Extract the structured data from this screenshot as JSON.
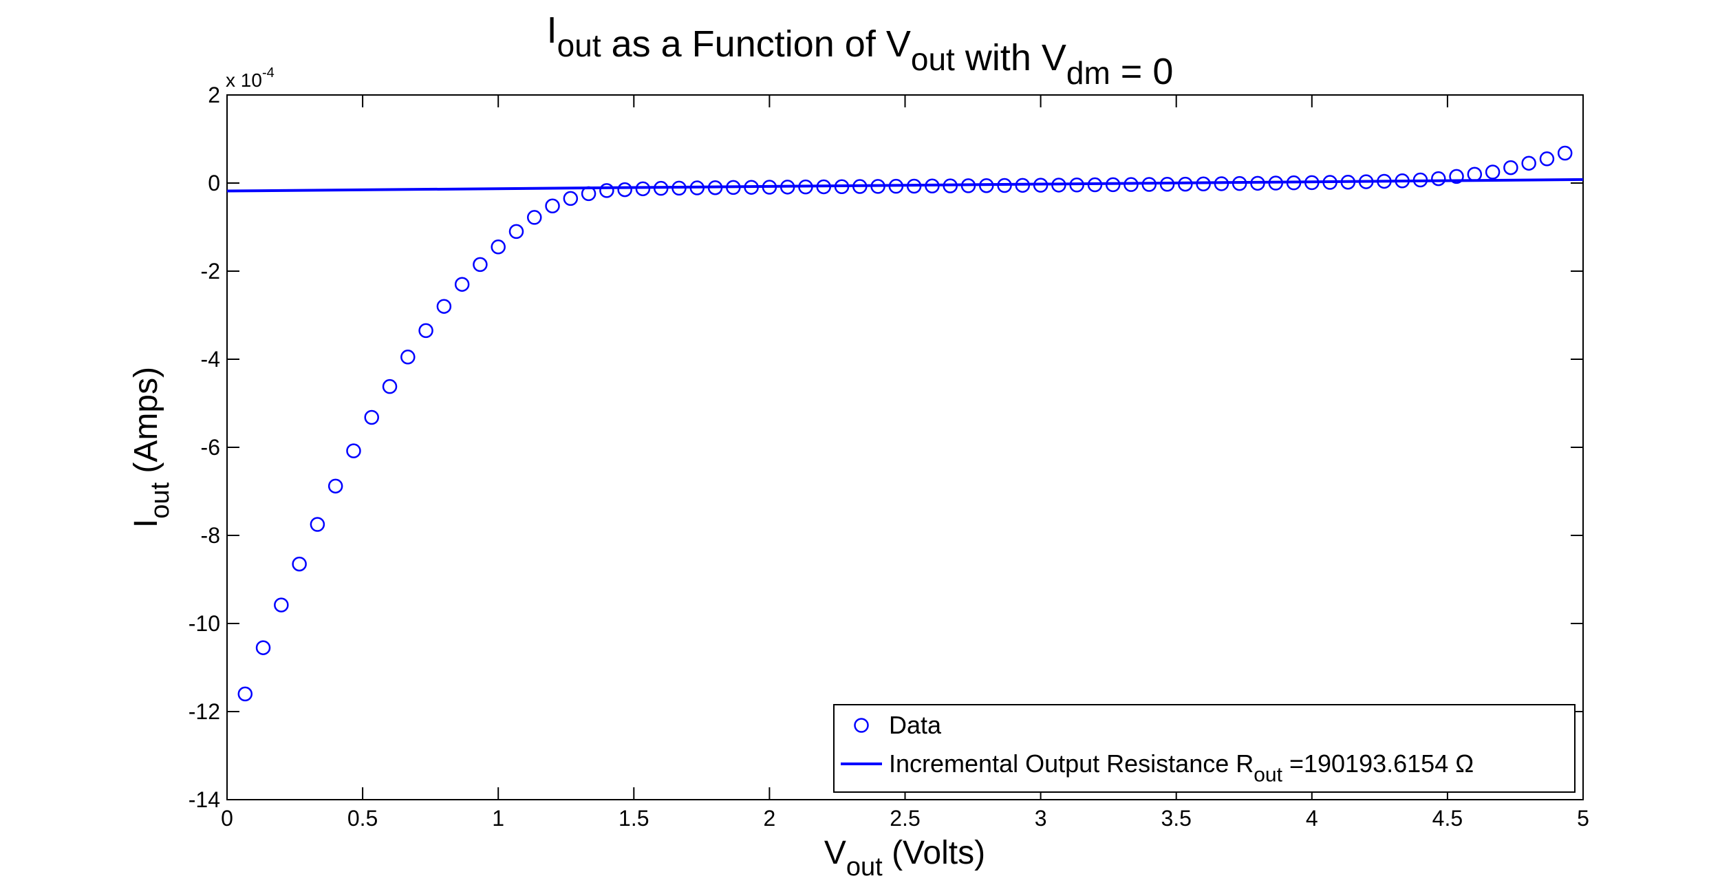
{
  "chart_data": {
    "type": "scatter",
    "title": {
      "parts": [
        {
          "text": "I",
          "sub": "out"
        },
        {
          "text": " as a Function of V",
          "sub": "out"
        },
        {
          "text": " with V",
          "sub": "dm"
        },
        {
          "text": " = 0",
          "sub": ""
        }
      ]
    },
    "xlabel": {
      "main": "V",
      "sub": "out",
      "rest": " (Volts)"
    },
    "ylabel": {
      "main": "I",
      "sub": "out",
      "rest": " (Amps)"
    },
    "y_multiplier": {
      "base": "x 10",
      "exponent": "-4"
    },
    "xlim": [
      0,
      5
    ],
    "ylim": [
      -14,
      2
    ],
    "x_ticks": [
      0,
      0.5,
      1,
      1.5,
      2,
      2.5,
      3,
      3.5,
      4,
      4.5,
      5
    ],
    "x_tick_labels": [
      "0",
      "0.5",
      "1",
      "1.5",
      "2",
      "2.5",
      "3",
      "3.5",
      "4",
      "4.5",
      "5"
    ],
    "y_ticks": [
      2,
      0,
      -2,
      -4,
      -6,
      -8,
      -10,
      -12,
      -14
    ],
    "y_tick_labels": [
      "2",
      "0",
      "-2",
      "-4",
      "-6",
      "-8",
      "-10",
      "-12",
      "-14"
    ],
    "y_units_note": "values in units of 1e-4 Amps",
    "grid": false,
    "legend_placement": "bottom-right",
    "color": "#0000ff",
    "series": [
      {
        "name": "Data",
        "type": "scatter",
        "marker": "circle",
        "x": [
          0.0667,
          0.1333,
          0.2,
          0.2667,
          0.3333,
          0.4,
          0.4667,
          0.5333,
          0.6,
          0.6667,
          0.7333,
          0.8,
          0.8667,
          0.9333,
          1.0,
          1.0667,
          1.1333,
          1.2,
          1.2667,
          1.3333,
          1.4,
          1.4667,
          1.5333,
          1.6,
          1.6667,
          1.7333,
          1.8,
          1.8667,
          1.9333,
          2.0,
          2.0667,
          2.1333,
          2.2,
          2.2667,
          2.3333,
          2.4,
          2.4667,
          2.5333,
          2.6,
          2.6667,
          2.7333,
          2.8,
          2.8667,
          2.9333,
          3.0,
          3.0667,
          3.1333,
          3.2,
          3.2667,
          3.3333,
          3.4,
          3.4667,
          3.5333,
          3.6,
          3.6667,
          3.7333,
          3.8,
          3.8667,
          3.9333,
          4.0,
          4.0667,
          4.1333,
          4.2,
          4.2667,
          4.3333,
          4.4,
          4.4667,
          4.5333,
          4.6,
          4.6667,
          4.7333,
          4.8,
          4.8667,
          4.9333
        ],
        "y": [
          -11.6,
          -10.55,
          -9.58,
          -8.65,
          -7.75,
          -6.88,
          -6.08,
          -5.32,
          -4.62,
          -3.95,
          -3.35,
          -2.8,
          -2.3,
          -1.85,
          -1.45,
          -1.1,
          -0.78,
          -0.52,
          -0.35,
          -0.24,
          -0.17,
          -0.15,
          -0.13,
          -0.12,
          -0.115,
          -0.11,
          -0.105,
          -0.1,
          -0.097,
          -0.094,
          -0.091,
          -0.088,
          -0.085,
          -0.082,
          -0.079,
          -0.076,
          -0.073,
          -0.07,
          -0.067,
          -0.064,
          -0.061,
          -0.058,
          -0.055,
          -0.052,
          -0.049,
          -0.046,
          -0.043,
          -0.04,
          -0.037,
          -0.034,
          -0.031,
          -0.028,
          -0.025,
          -0.02,
          -0.015,
          -0.01,
          -0.005,
          0.0,
          0.005,
          0.01,
          0.015,
          0.02,
          0.03,
          0.04,
          0.05,
          0.07,
          0.1,
          0.15,
          0.2,
          0.25,
          0.35,
          0.45,
          0.55,
          0.68
        ]
      },
      {
        "name": "Incremental Output Resistance R",
        "name_sub": "out",
        "name_rest": " =190193.6154 Ω",
        "type": "line",
        "x": [
          0,
          5
        ],
        "y": [
          -0.18,
          0.08
        ]
      }
    ]
  }
}
